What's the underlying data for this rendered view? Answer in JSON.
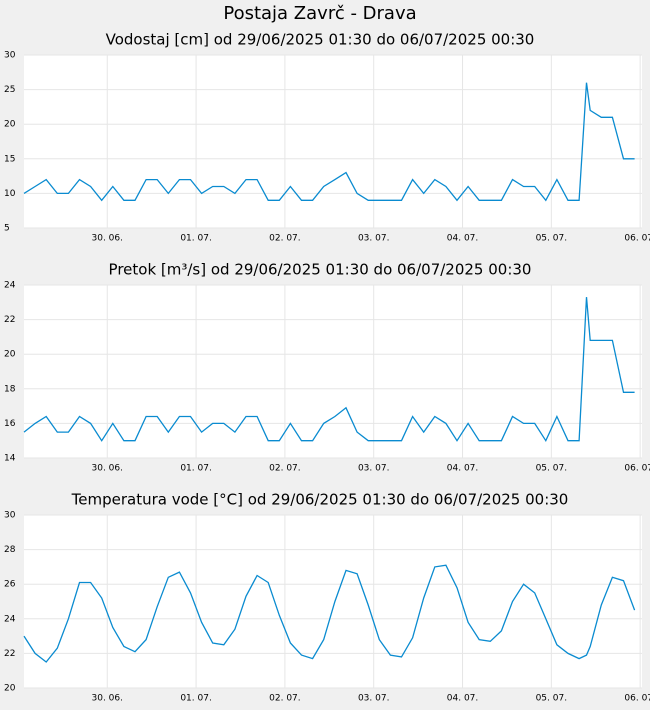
{
  "title": "Postaja Zavrč - Drava",
  "chart_data": [
    {
      "type": "line",
      "title": "Vodostaj [cm] od 29/06/2025 01:30 do 06/07/2025 00:30",
      "color": "#0a8bd0",
      "grid": true,
      "x": [
        0,
        3,
        6,
        9,
        12,
        15,
        18,
        21,
        24,
        27,
        30,
        33,
        36,
        39,
        42,
        45,
        48,
        51,
        54,
        57,
        60,
        63,
        66,
        69,
        72,
        75,
        78,
        81,
        84,
        87,
        90,
        93,
        96,
        99,
        102,
        105,
        108,
        111,
        114,
        117,
        120,
        123,
        126,
        129,
        132,
        135,
        138,
        141,
        144,
        147,
        150,
        152,
        153,
        156,
        159,
        162,
        165
      ],
      "values": [
        10,
        11,
        12,
        10,
        10,
        12,
        11,
        9,
        11,
        9,
        9,
        12,
        12,
        10,
        12,
        12,
        10,
        11,
        11,
        10,
        12,
        12,
        9,
        9,
        11,
        9,
        9,
        11,
        12,
        13,
        10,
        9,
        9,
        9,
        9,
        12,
        10,
        12,
        11,
        9,
        11,
        9,
        9,
        9,
        12,
        11,
        11,
        9,
        12,
        9,
        9,
        26,
        22,
        21,
        21,
        15,
        15
      ],
      "xlim": [
        0,
        167
      ],
      "xticks": [
        {
          "value": 22.5,
          "label": "30. 06."
        },
        {
          "value": 46.5,
          "label": "01. 07."
        },
        {
          "value": 70.5,
          "label": "02. 07."
        },
        {
          "value": 94.5,
          "label": "03. 07."
        },
        {
          "value": 118.5,
          "label": "04. 07."
        },
        {
          "value": 142.5,
          "label": "05. 07."
        },
        {
          "value": 166.5,
          "label": "06. 07."
        }
      ],
      "ylim": [
        5,
        30
      ],
      "yticks": [
        5,
        10,
        15,
        20,
        25,
        30
      ]
    },
    {
      "type": "line",
      "title": "Pretok [m³/s] od 29/06/2025 01:30 do 06/07/2025 00:30",
      "color": "#0a8bd0",
      "grid": true,
      "x": [
        0,
        3,
        6,
        9,
        12,
        15,
        18,
        21,
        24,
        27,
        30,
        33,
        36,
        39,
        42,
        45,
        48,
        51,
        54,
        57,
        60,
        63,
        66,
        69,
        72,
        75,
        78,
        81,
        84,
        87,
        90,
        93,
        96,
        99,
        102,
        105,
        108,
        111,
        114,
        117,
        120,
        123,
        126,
        129,
        132,
        135,
        138,
        141,
        144,
        147,
        150,
        152,
        153,
        156,
        159,
        162,
        165
      ],
      "values": [
        15.5,
        16,
        16.4,
        15.5,
        15.5,
        16.4,
        16,
        15,
        16,
        15,
        15,
        16.4,
        16.4,
        15.5,
        16.4,
        16.4,
        15.5,
        16,
        16,
        15.5,
        16.4,
        16.4,
        15,
        15,
        16,
        15,
        15,
        16,
        16.4,
        16.9,
        15.5,
        15,
        15,
        15,
        15,
        16.4,
        15.5,
        16.4,
        16,
        15,
        16,
        15,
        15,
        15,
        16.4,
        16,
        16,
        15,
        16.4,
        15,
        15,
        23.3,
        20.8,
        20.8,
        20.8,
        17.8,
        17.8
      ],
      "xlim": [
        0,
        167
      ],
      "xticks": [
        {
          "value": 22.5,
          "label": "30. 06."
        },
        {
          "value": 46.5,
          "label": "01. 07."
        },
        {
          "value": 70.5,
          "label": "02. 07."
        },
        {
          "value": 94.5,
          "label": "03. 07."
        },
        {
          "value": 118.5,
          "label": "04. 07."
        },
        {
          "value": 142.5,
          "label": "05. 07."
        },
        {
          "value": 166.5,
          "label": "06. 07."
        }
      ],
      "ylim": [
        14,
        24
      ],
      "yticks": [
        14,
        16,
        18,
        20,
        22,
        24
      ]
    },
    {
      "type": "line",
      "title": "Temperatura vode [°C] od 29/06/2025 01:30 do 06/07/2025 00:30",
      "color": "#0a8bd0",
      "grid": true,
      "x": [
        0,
        3,
        6,
        9,
        12,
        15,
        18,
        21,
        24,
        27,
        30,
        33,
        36,
        39,
        42,
        45,
        48,
        51,
        54,
        57,
        60,
        63,
        66,
        69,
        72,
        75,
        78,
        81,
        84,
        87,
        90,
        93,
        96,
        99,
        102,
        105,
        108,
        111,
        114,
        117,
        120,
        123,
        126,
        129,
        132,
        135,
        138,
        141,
        144,
        147,
        150,
        152,
        153,
        156,
        159,
        162,
        165
      ],
      "values": [
        23,
        22,
        21.5,
        22.3,
        24,
        26.1,
        26.1,
        25.2,
        23.5,
        22.4,
        22.1,
        22.8,
        24.7,
        26.4,
        26.7,
        25.5,
        23.8,
        22.6,
        22.5,
        23.4,
        25.3,
        26.5,
        26.1,
        24.2,
        22.6,
        21.9,
        21.7,
        22.8,
        25,
        26.8,
        26.6,
        24.8,
        22.8,
        21.9,
        21.8,
        22.9,
        25.2,
        27,
        27.1,
        25.8,
        23.8,
        22.8,
        22.7,
        23.3,
        25,
        26,
        25.5,
        24,
        22.5,
        22,
        21.7,
        21.9,
        22.4,
        24.8,
        26.4,
        26.2,
        24.5
      ],
      "xlim": [
        0,
        167
      ],
      "xticks": [
        {
          "value": 22.5,
          "label": "30. 06."
        },
        {
          "value": 46.5,
          "label": "01. 07."
        },
        {
          "value": 70.5,
          "label": "02. 07."
        },
        {
          "value": 94.5,
          "label": "03. 07."
        },
        {
          "value": 118.5,
          "label": "04. 07."
        },
        {
          "value": 142.5,
          "label": "05. 07."
        },
        {
          "value": 166.5,
          "label": "06. 07."
        }
      ],
      "ylim": [
        20,
        30
      ],
      "yticks": [
        20,
        22,
        24,
        26,
        28,
        30
      ]
    }
  ]
}
